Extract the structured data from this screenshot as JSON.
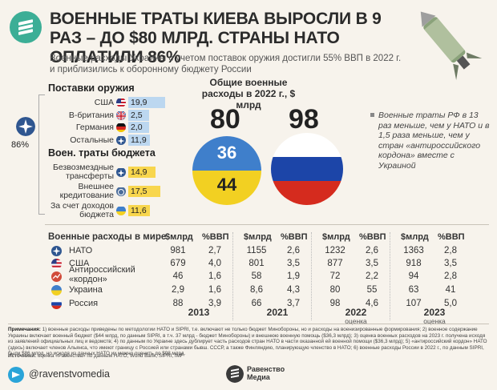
{
  "header": {
    "title": "ВОЕННЫЕ ТРАТЫ КИЕВА ВЫРОСЛИ В 9 РАЗ – ДО $80 МЛРД. СТРАНЫ НАТО ОПЛАТИЛИ 86%",
    "subtitle": "Военные расходы Украины с учетом поставок оружия достигли 55% ВВП в 2022 г. и приблизились к оборонному бюджету России"
  },
  "colors": {
    "brand": "#3cae96",
    "blue_bar": "#bcd7f0",
    "yellow_bar": "#f8d64d",
    "ukraine_blue": "#3f7fcb",
    "ukraine_yellow": "#f2d022",
    "russia_red": "#d52b1e"
  },
  "weapons": {
    "title": "Поставки оружия",
    "items": [
      {
        "label": "США",
        "value": "19,9",
        "icon": "usa-flag-icon",
        "num": 19.9
      },
      {
        "label": "В-британия",
        "value": "2,5",
        "icon": "uk-flag-icon",
        "num": 2.5
      },
      {
        "label": "Германия",
        "value": "2,0",
        "icon": "germany-flag-icon",
        "num": 2.0
      },
      {
        "label": "Остальные",
        "value": "11,9",
        "icon": "nato-icon",
        "num": 11.9
      }
    ]
  },
  "budget": {
    "title": "Воен. траты бюджета",
    "items": [
      {
        "label1": "Безвозмездные",
        "label2": "трансферты",
        "value": "14,9",
        "icon": "nato-icon",
        "num": 14.9
      },
      {
        "label1": "Внешнее",
        "label2": "кредитование",
        "value": "17,5",
        "icon": "imf-icon",
        "num": 17.5
      },
      {
        "label1": "За счет доходов",
        "label2": "бюджета",
        "value": "11,6",
        "icon": "ukraine-flag-icon",
        "num": 11.6
      }
    ]
  },
  "nato_share": "86%",
  "center": {
    "title": "Общие военные расходы в 2022 г., $ млрд",
    "ukraine_total": "80",
    "russia_total": "98",
    "ukraine_top": "36",
    "ukraine_bottom": "44"
  },
  "note": "Военные траты РФ в 13 раз меньше, чем у НАТО и в 1,5 раза меньше, чем у стран «антироссийского кордона» вместе с Украиной",
  "world": {
    "title": "Военные расходы в мире",
    "col_usd": "$млрд",
    "col_gdp": "%ВВП",
    "rows": [
      {
        "label": "НАТО",
        "icon": "nato-icon",
        "v": [
          "981",
          "2,7",
          "1155",
          "2,6",
          "1232",
          "2,6",
          "1363",
          "2,8"
        ]
      },
      {
        "label": "США",
        "icon": "usa-flag-icon",
        "v": [
          "679",
          "4,0",
          "801",
          "3,5",
          "877",
          "3,5",
          "918",
          "3,5"
        ]
      },
      {
        "label": "Антироссийский «кордон»",
        "icon": "cordon-icon",
        "v": [
          "46",
          "1,6",
          "58",
          "1,9",
          "72",
          "2,2",
          "94",
          "2,8"
        ]
      },
      {
        "label": "Украина",
        "icon": "ukraine-flag-icon",
        "v": [
          "2,9",
          "1,6",
          "8,6",
          "4,3",
          "80",
          "55",
          "63",
          "41"
        ]
      },
      {
        "label": "Россия",
        "icon": "russia-flag-icon",
        "v": [
          "88",
          "3,9",
          "66",
          "3,7",
          "98",
          "4,6",
          "107",
          "5,0"
        ]
      }
    ],
    "years": [
      {
        "year": "2013",
        "sub": ""
      },
      {
        "year": "2021",
        "sub": ""
      },
      {
        "year": "2022",
        "sub": "оценка"
      },
      {
        "year": "2023",
        "sub": "оценка"
      }
    ]
  },
  "footnote": {
    "label": "Примечания:",
    "text": "1) военные расходы приведены по методологии НАТО и SIPRI, т.е. включают не только бюджет Минобороны, но и расходы на военизированные формирования; 2) военное содержание Украины включает военный бюджет ($44 млрд, по данным SIPRI, в т.ч. 37 млрд - бюджет Минобороны) и внешнюю военную помощь ($36,3 млрд); 3) оценка военных расходов на 2023 г. получена исходя из заявлений официальных лиц и ведомств; 4) по данным по Украине здесь дублирует часть расходов стран НАТО в части оказанной ей военной помощи ($36,3 млрд); 5) «антироссийский кордон» НАТО (здесь) включает членов Альянса, что имеют границу с Россией или странами бывш. СССР, а также Финляндию, планирующую членство в НАТО; 6) военные расходы России в 2022 г., по данным SIPRI, были $86 млрд, но исходя из данных НАТО их можно оценить до $98 млрд."
  },
  "sources": {
    "label": "Источники:",
    "text": "оценка «Равенства» по данным НАТО, World Bank, SIPRI, IMF"
  },
  "footer": {
    "handle": "@ravenstvomedia",
    "brand_line1": "Равенство",
    "brand_line2": "Медиа"
  }
}
